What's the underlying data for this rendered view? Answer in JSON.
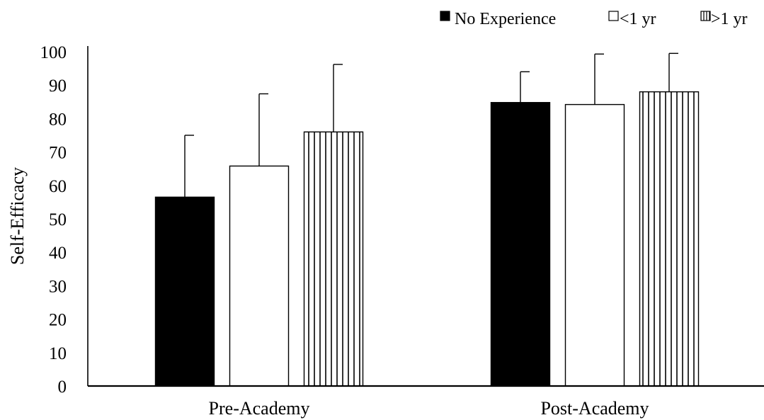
{
  "chart_data": {
    "type": "bar",
    "title": "",
    "xlabel": "",
    "ylabel": "Self-Efficacy",
    "ylim": [
      0,
      100
    ],
    "yticks": [
      0,
      10,
      20,
      30,
      40,
      50,
      60,
      70,
      80,
      90,
      100
    ],
    "categories": [
      "Pre-Academy",
      "Post-Academy"
    ],
    "grid": false,
    "legend": "top-right",
    "series": [
      {
        "name": "No Experience",
        "pattern": "solid",
        "values": [
          56.5,
          84.8
        ],
        "error": [
          18.5,
          9.2
        ]
      },
      {
        "name": "<1 yr",
        "pattern": "empty",
        "values": [
          65.8,
          84.2
        ],
        "error": [
          21.6,
          15.1
        ]
      },
      {
        "name": ">1 yr",
        "pattern": "vertical-stripes",
        "values": [
          76.0,
          88.0
        ],
        "error": [
          20.2,
          11.5
        ]
      }
    ],
    "colors": {
      "fill": "#000000",
      "background": "#ffffff",
      "stroke": "#000000"
    }
  }
}
